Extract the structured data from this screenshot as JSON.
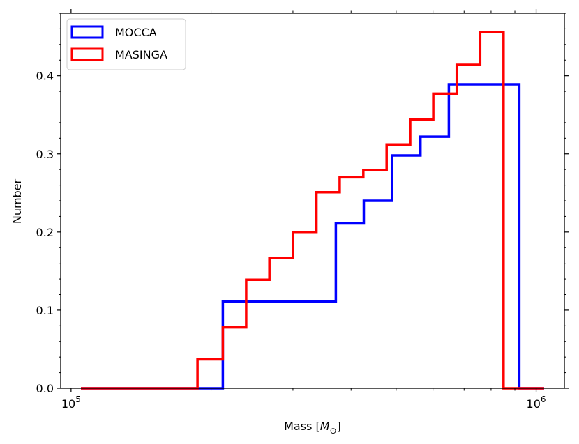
{
  "chart_data": {
    "type": "histogram-step",
    "xscale": "log",
    "xlim": [
      95000,
      1150000
    ],
    "ylim": [
      0,
      0.48
    ],
    "xlabel": "Mass [",
    "xlabel_symbol": "M",
    "xlabel_sub": "⊙",
    "xlabel_close": "]",
    "ylabel": "Number",
    "x_tick_labels": [
      {
        "value": 100000,
        "base": "10",
        "exp": "5"
      },
      {
        "value": 1000000,
        "base": "10",
        "exp": "6"
      }
    ],
    "y_ticks": [
      0.0,
      0.1,
      0.2,
      0.3,
      0.4
    ],
    "y_tick_labels": [
      "0.0",
      "0.1",
      "0.2",
      "0.3",
      "0.4"
    ],
    "legend_position": "top-left",
    "series": [
      {
        "name": "MOCCA",
        "color": "#0000ff",
        "edges": [
          105000,
          121000,
          139000,
          160000,
          184000,
          212000,
          244000,
          280000,
          322000,
          371000,
          426000,
          490000,
          564000,
          649000,
          746000,
          858000,
          920000,
          1040000
        ],
        "values": [
          0,
          0,
          0,
          0,
          0,
          0.111,
          0.111,
          0.111,
          0.111,
          0.211,
          0.24,
          0.298,
          0.322,
          0.389,
          0.389,
          0.389,
          0
        ]
      },
      {
        "name": "MASINGA",
        "color": "#ff0000",
        "edges": [
          105000,
          121000,
          139000,
          160000,
          187000,
          212000,
          238000,
          267000,
          300000,
          337000,
          378000,
          425000,
          477000,
          536000,
          601000,
          675000,
          758000,
          851000,
          920000,
          1040000
        ],
        "values": [
          0,
          0,
          0,
          0,
          0.037,
          0.078,
          0.139,
          0.167,
          0.2,
          0.251,
          0.27,
          0.279,
          0.312,
          0.344,
          0.377,
          0.414,
          0.456,
          0,
          0
        ]
      }
    ]
  }
}
